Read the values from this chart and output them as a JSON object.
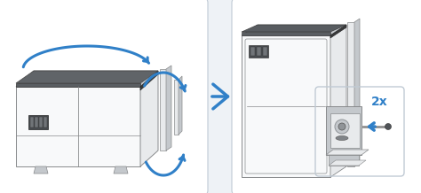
{
  "bg_color": "#eef2f6",
  "panel_bg": "#ffffff",
  "border_color": "#c0cad4",
  "arrow_blue": "#3080c8",
  "text_2x": "2x",
  "text_2x_color": "#3080c8",
  "text_2x_fontsize": 10,
  "LG": "#e8eaec",
  "MG": "#c4c8cc",
  "DG": "#909498",
  "VDG": "#5a5e62",
  "BLK": "#38393a",
  "W": "#f8f9fa",
  "LINE": "#888a8c"
}
